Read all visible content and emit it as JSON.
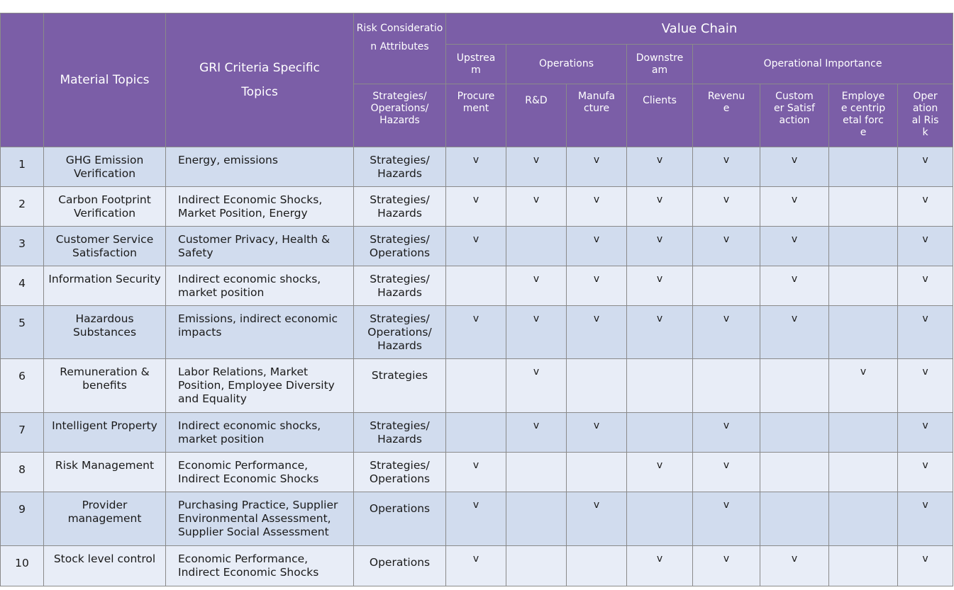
{
  "header": {
    "material_topics": "Material Topics",
    "gri_criteria": "GRI Criteria Specific Topics",
    "risk_consideration": "Risk Consideration Attributes",
    "risk_sub": "Strategies/ Operations/ Hazards",
    "value_chain": "Value Chain",
    "groups": {
      "upstream": "Upstream",
      "operations": "Operations",
      "downstream": "Downstream",
      "operational_importance": "Operational Importance"
    },
    "columns": [
      "Procurement",
      "R&D",
      "Manufacture",
      "Clients",
      "Revenue",
      "Customer Satisfaction",
      "Employee centripetal force",
      "Operational Risk"
    ]
  },
  "check_mark": "v",
  "rows": [
    {
      "num": "1",
      "topic": "GHG Emission Verification",
      "gri": "Energy, emissions",
      "attr": "Strategies/ Hazards",
      "marks": [
        true,
        true,
        true,
        true,
        true,
        true,
        false,
        true
      ]
    },
    {
      "num": "2",
      "topic": "Carbon Footprint Verification",
      "gri": "Indirect Economic Shocks, Market Position, Energy",
      "attr": "Strategies/ Hazards",
      "marks": [
        true,
        true,
        true,
        true,
        true,
        true,
        false,
        true
      ]
    },
    {
      "num": "3",
      "topic": "Customer Service Satisfaction",
      "gri": "Customer Privacy, Health & Safety",
      "attr": "Strategies/ Operations",
      "marks": [
        true,
        false,
        true,
        true,
        true,
        true,
        false,
        true
      ]
    },
    {
      "num": "4",
      "topic": "Information Security",
      "gri": "Indirect economic shocks, market position",
      "attr": "Strategies/ Hazards",
      "marks": [
        false,
        true,
        true,
        true,
        false,
        true,
        false,
        true
      ]
    },
    {
      "num": "5",
      "topic": "Hazardous Substances",
      "gri": "Emissions, indirect economic impacts",
      "attr": "Strategies/ Operations/ Hazards",
      "marks": [
        true,
        true,
        true,
        true,
        true,
        true,
        false,
        true
      ]
    },
    {
      "num": "6",
      "topic": "Remuneration & benefits",
      "gri": "Labor Relations, Market Position, Employee Diversity and Equality",
      "attr": "Strategies",
      "marks": [
        false,
        true,
        false,
        false,
        false,
        false,
        true,
        true
      ]
    },
    {
      "num": "7",
      "topic": "Intelligent Property",
      "gri": "Indirect economic shocks, market position",
      "attr": "Strategies/ Hazards",
      "marks": [
        false,
        true,
        true,
        false,
        true,
        false,
        false,
        true
      ]
    },
    {
      "num": "8",
      "topic": "Risk Management",
      "gri": "Economic Performance, Indirect Economic Shocks",
      "attr": "Strategies/ Operations",
      "marks": [
        true,
        false,
        false,
        true,
        true,
        false,
        false,
        true
      ]
    },
    {
      "num": "9",
      "topic": "Provider management",
      "gri": "Purchasing Practice, Supplier Environmental Assessment, Supplier Social Assessment",
      "attr": "Operations",
      "marks": [
        true,
        false,
        true,
        false,
        true,
        false,
        false,
        true
      ]
    },
    {
      "num": "10",
      "topic": "Stock level control",
      "gri": "Economic Performance, Indirect Economic Shocks",
      "attr": "Operations",
      "marks": [
        true,
        false,
        false,
        true,
        true,
        true,
        false,
        true
      ]
    }
  ]
}
